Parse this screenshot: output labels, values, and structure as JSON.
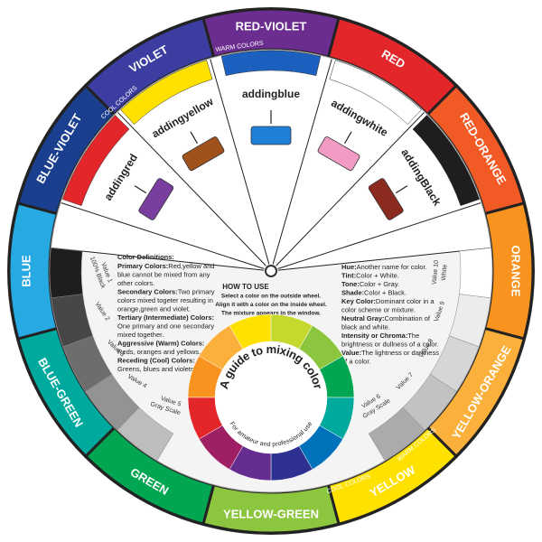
{
  "outer_ring": [
    {
      "label": "RED-VIOLET",
      "color": "#6b2d90"
    },
    {
      "label": "RED",
      "color": "#e3262a"
    },
    {
      "label": "RED-ORANGE",
      "color": "#f15a24"
    },
    {
      "label": "ORANGE",
      "color": "#f7931e"
    },
    {
      "label": "YELLOW-ORANGE",
      "color": "#fbb03b"
    },
    {
      "label": "YELLOW",
      "color": "#ffe100"
    },
    {
      "label": "YELLOW-GREEN",
      "color": "#8cc63f"
    },
    {
      "label": "GREEN",
      "color": "#00a651"
    },
    {
      "label": "BLUE-GREEN",
      "color": "#00a99d"
    },
    {
      "label": "BLUE",
      "color": "#27aae1"
    },
    {
      "label": "BLUE-VIOLET",
      "color": "#1b3f8f"
    },
    {
      "label": "VIOLET",
      "color": "#3b3ea0"
    }
  ],
  "ring_notes": [
    "WARM COLORS",
    "COOL COLORS",
    "COOL COLORS",
    "WARM COLORS"
  ],
  "windows": [
    {
      "verb": "adding",
      "color_name": "red",
      "swatch": "#7a3ea1"
    },
    {
      "verb": "adding",
      "color_name": "yellow",
      "swatch": "#a0521d"
    },
    {
      "verb": "adding",
      "color_name": "blue",
      "swatch": "#1e7fd6"
    },
    {
      "verb": "adding",
      "color_name": "white",
      "swatch": "#f29bc4"
    },
    {
      "verb": "adding",
      "color_name": "Black",
      "swatch": "#8b2a1e"
    }
  ],
  "gray_scale_left": [
    {
      "labels": [
        "100% Black",
        "Value 1"
      ],
      "color": "#1e1e1e"
    },
    {
      "labels": [
        "Value 2"
      ],
      "color": "#474747"
    },
    {
      "labels": [
        "Value 3"
      ],
      "color": "#6d6d6d"
    },
    {
      "labels": [
        "Value 4"
      ],
      "color": "#939393"
    },
    {
      "labels": [
        "Gray Scale",
        "Value 5"
      ],
      "color": "#bdbdbd"
    }
  ],
  "gray_scale_right": [
    {
      "labels": [
        "White",
        "Value 10"
      ],
      "color": "#ffffff"
    },
    {
      "labels": [
        "Value 9"
      ],
      "color": "#ececec"
    },
    {
      "labels": [
        "Value 8"
      ],
      "color": "#d6d6d6"
    },
    {
      "labels": [
        "Value 7"
      ],
      "color": "#c2c2c2"
    },
    {
      "labels": [
        "Gray Scale",
        "Value 6"
      ],
      "color": "#ababab"
    }
  ],
  "definitions_left": {
    "title": "Color Definitions:",
    "items": [
      {
        "term": "Primary Colors:",
        "rest": "Red,yellow and",
        "lines": [
          "blue cannot be mixed from any",
          "other colors."
        ]
      },
      {
        "term": "Secondary Colors:",
        "rest": "Two primary",
        "lines": [
          "colors mixed togeter resulting in",
          "orange,green and violet."
        ]
      },
      {
        "term": "Tertiary (Intermediate) Colors:",
        "lines": [
          "One primary and one secondary",
          "mixed together."
        ]
      },
      {
        "term": "Aggressive (Warm) Colors:",
        "lines": [
          "Reds, oranges and yellows."
        ]
      },
      {
        "term": "Receding (Cool) Colors:",
        "lines": [
          "Greens, blues and violets."
        ]
      }
    ]
  },
  "definitions_right": {
    "items": [
      {
        "term": "Hue:",
        "rest": "Another name for color.",
        "lines": []
      },
      {
        "term": "Tint:",
        "rest": "Color + White.",
        "lines": []
      },
      {
        "term": "Tone:",
        "rest": "Color + Gray.",
        "lines": []
      },
      {
        "term": "Shade:",
        "rest": "Color + Black.",
        "lines": []
      },
      {
        "term": "Key Color:",
        "rest": "Dominant color in a",
        "lines": [
          "color scheme or mixture."
        ]
      },
      {
        "term": "Neutral Gray:",
        "rest": "Combination of",
        "lines": [
          "black and white."
        ]
      },
      {
        "term": "Intensity or Chroma:",
        "rest": "The",
        "lines": [
          "brightness or dullness of a color."
        ]
      },
      {
        "term": "Value:",
        "rest": "The lightness or darkness",
        "lines": [
          "of a color."
        ]
      }
    ]
  },
  "how_to_use": {
    "title": "HOW TO USE",
    "lines": [
      "Select a color on the outside wheel.",
      "Align it with a color on the inside wheel.",
      "The mixture appears in the window."
    ]
  },
  "inner_wheel": {
    "title": "A guide to mixing color",
    "subtitle": "For amateur and professional use",
    "colors": [
      "#f7931e",
      "#fbb03b",
      "#ffe100",
      "#c4d82e",
      "#8cc63f",
      "#00a651",
      "#00a99d",
      "#0072bc",
      "#2e3192",
      "#662d91",
      "#9e1f63",
      "#e3262a"
    ]
  }
}
